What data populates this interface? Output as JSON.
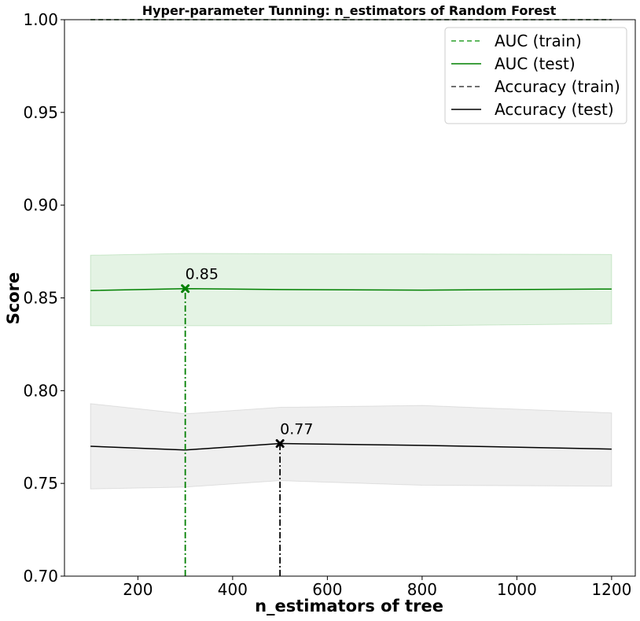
{
  "chart_data": {
    "type": "line",
    "title": "Hyper-parameter Tunning: n_estimators of Random Forest",
    "xlabel": "n_estimators of tree",
    "ylabel": "Score",
    "xlim": [
      45,
      1250
    ],
    "ylim": [
      0.7,
      1.0
    ],
    "xticks": [
      200,
      400,
      600,
      800,
      1000,
      1200
    ],
    "xtick_labels": [
      "200",
      "400",
      "600",
      "800",
      "1000",
      "1200"
    ],
    "yticks": [
      0.7,
      0.75,
      0.8,
      0.85,
      0.9,
      0.95,
      1.0
    ],
    "ytick_labels": [
      "0.70",
      "0.75",
      "0.80",
      "0.85",
      "0.90",
      "0.95",
      "1.00"
    ],
    "x": [
      100,
      300,
      500,
      800,
      1200
    ],
    "series": [
      {
        "name": "AUC (train)",
        "style": "dashed",
        "color": "#2ca02c",
        "values": [
          1.0,
          1.0,
          1.0,
          1.0,
          1.0
        ]
      },
      {
        "name": "AUC (test)",
        "style": "solid",
        "color": "#008000",
        "band_color": "#2ca02c",
        "values": [
          0.854,
          0.855,
          0.8545,
          0.8542,
          0.8548
        ],
        "band_lower": [
          0.835,
          0.835,
          0.835,
          0.835,
          0.836
        ],
        "band_upper": [
          0.873,
          0.874,
          0.8738,
          0.8737,
          0.8734
        ]
      },
      {
        "name": "Accuracy (train)",
        "style": "dashed",
        "color": "#404040",
        "values": [
          1.0,
          1.0,
          1.0,
          1.0,
          1.0
        ]
      },
      {
        "name": "Accuracy (test)",
        "style": "solid",
        "color": "#000000",
        "band_color": "#808080",
        "values": [
          0.77,
          0.768,
          0.7715,
          0.7705,
          0.7685
        ],
        "band_lower": [
          0.747,
          0.748,
          0.7515,
          0.749,
          0.7485
        ],
        "band_upper": [
          0.793,
          0.7875,
          0.791,
          0.792,
          0.788
        ]
      }
    ],
    "annotations": [
      {
        "series": "AUC (test)",
        "x": 300,
        "y": 0.855,
        "text": "0.85",
        "color": "#008000"
      },
      {
        "series": "Accuracy (test)",
        "x": 500,
        "y": 0.7715,
        "text": "0.77",
        "color": "#000000"
      }
    ],
    "grid": false,
    "legend_position": "top-right"
  }
}
